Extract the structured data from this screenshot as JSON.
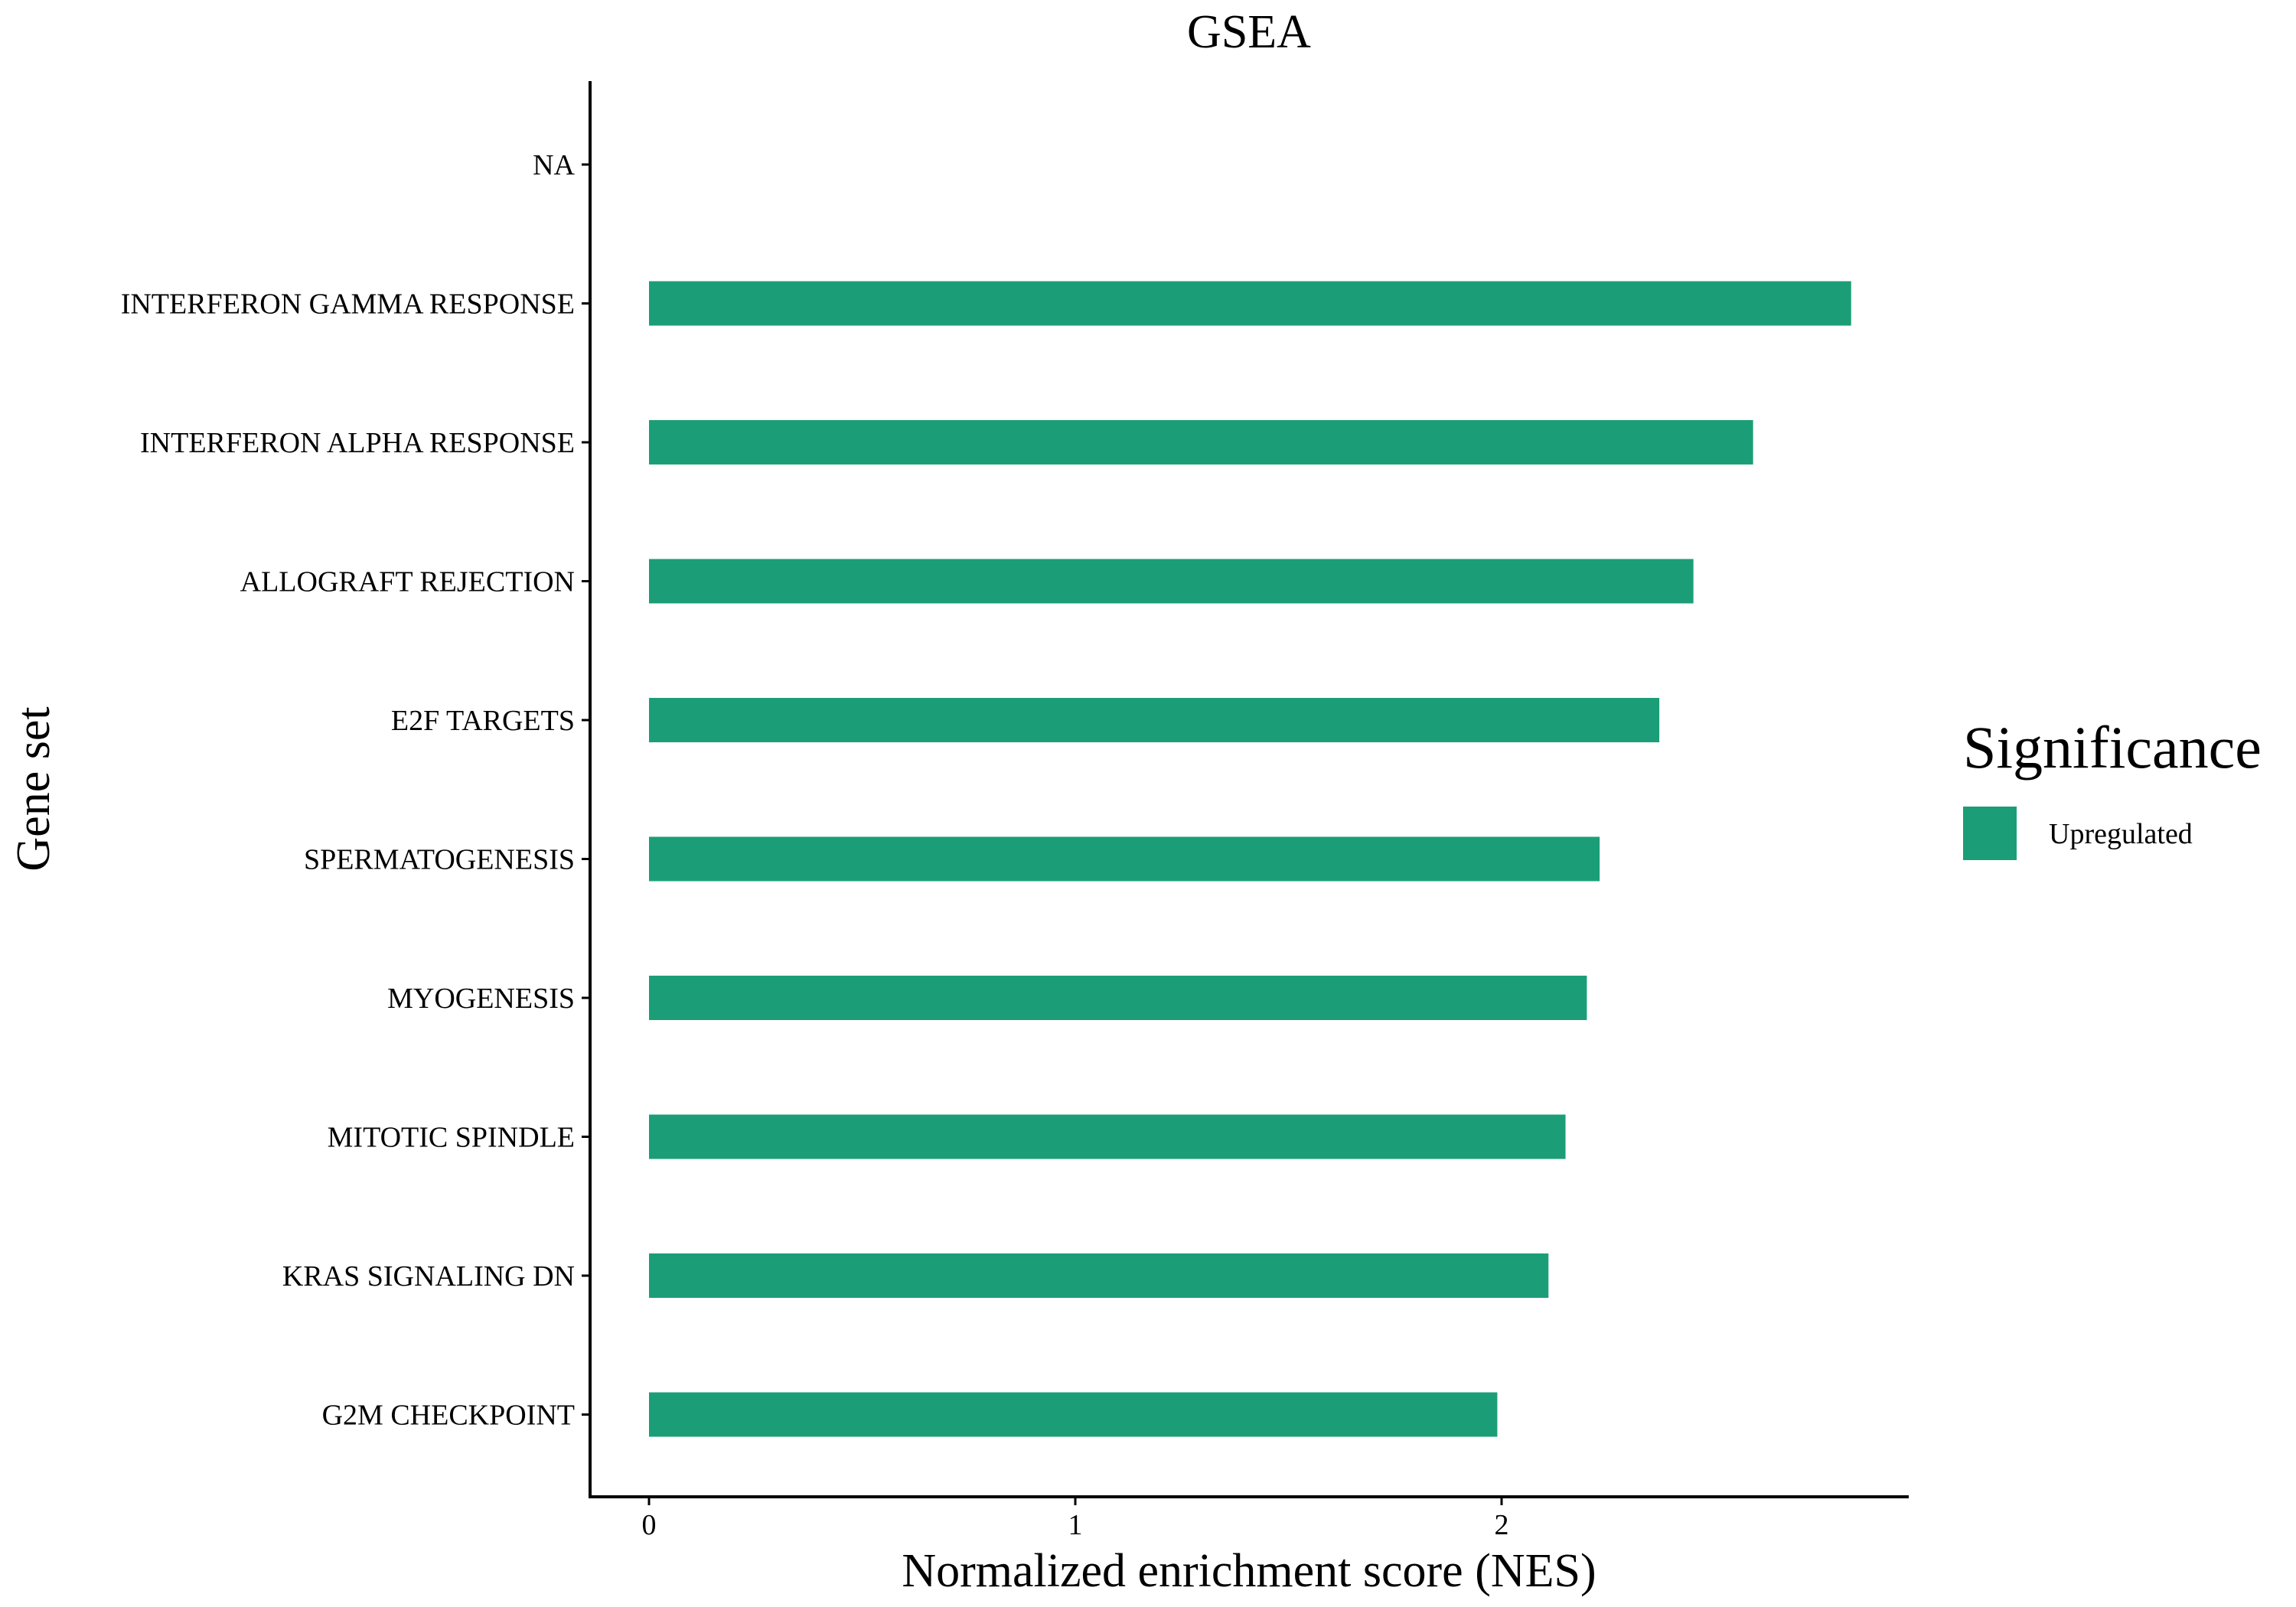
{
  "chart_data": {
    "type": "bar",
    "orientation": "horizontal",
    "title": "GSEA",
    "xlabel": "Normalized enrichment score (NES)",
    "ylabel": "Gene set",
    "xlim": [
      -0.14,
      2.95
    ],
    "xticks": [
      0,
      1,
      2
    ],
    "grid": false,
    "legend_position": "right",
    "categories": [
      "NA",
      "INTERFERON GAMMA RESPONSE",
      "INTERFERON ALPHA RESPONSE",
      "ALLOGRAFT REJECTION",
      "E2F TARGETS",
      "SPERMATOGENESIS",
      "MYOGENESIS",
      "MITOTIC SPINDLE",
      "KRAS SIGNALING DN",
      "G2M CHECKPOINT"
    ],
    "series": [
      {
        "name": "Upregulated",
        "color": "#1b9e77",
        "values": [
          null,
          2.82,
          2.59,
          2.45,
          2.37,
          2.23,
          2.2,
          2.15,
          2.11,
          1.99
        ]
      }
    ],
    "legend": {
      "title": "Significance",
      "entries": [
        "Upregulated"
      ]
    }
  }
}
